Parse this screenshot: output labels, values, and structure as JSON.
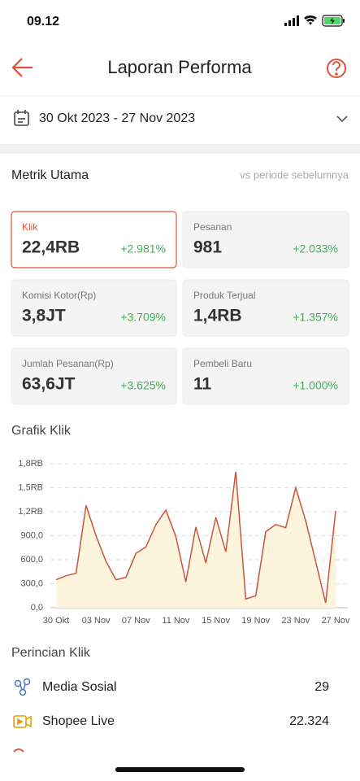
{
  "status_bar": {
    "time": "09.12"
  },
  "header": {
    "title": "Laporan Performa"
  },
  "date_range": "30 Okt 2023 - 27 Nov 2023",
  "section": {
    "title": "Metrik Utama",
    "comparison": "vs periode sebelumnya"
  },
  "metrics": [
    {
      "label": "Klik",
      "value": "22,4RB",
      "change": "+2.981%"
    },
    {
      "label": "Pesanan",
      "value": "981",
      "change": "+2.033%"
    },
    {
      "label": "Komisi Kotor(Rp)",
      "value": "3,8JT",
      "change": "+3.709%"
    },
    {
      "label": "Produk Terjual",
      "value": "1,4RB",
      "change": "+1.357%"
    },
    {
      "label": "Jumlah Pesanan(Rp)",
      "value": "63,6JT",
      "change": "+3.625%"
    },
    {
      "label": "Pembeli Baru",
      "value": "11",
      "change": "+1.000%"
    }
  ],
  "chart_data": {
    "type": "line",
    "title": "Grafik Klik",
    "categories": [
      "30 Okt",
      null,
      null,
      null,
      "03 Nov",
      null,
      null,
      null,
      "07 Nov",
      null,
      null,
      null,
      "11 Nov",
      null,
      null,
      null,
      "15 Nov",
      null,
      null,
      null,
      "19 Nov",
      null,
      null,
      null,
      "23 Nov",
      null,
      null,
      null,
      "27 Nov"
    ],
    "values": [
      350,
      400,
      430,
      1280,
      900,
      580,
      350,
      380,
      680,
      760,
      1040,
      1220,
      890,
      320,
      1010,
      560,
      1130,
      700,
      1700,
      110,
      150,
      950,
      1040,
      1000,
      1500,
      1090,
      580,
      60,
      1210
    ],
    "color": "#c8553d",
    "area_color": "#fdf4de",
    "ylim": [
      0,
      1800
    ],
    "yticks": [
      {
        "value": 0,
        "label": "0,0"
      },
      {
        "value": 300,
        "label": "300,0"
      },
      {
        "value": 600,
        "label": "600,0"
      },
      {
        "value": 900,
        "label": "900,0"
      },
      {
        "value": 1200,
        "label": "1,2RB"
      },
      {
        "value": 1500,
        "label": "1,5RB"
      },
      {
        "value": 1800,
        "label": "1,8RB"
      }
    ],
    "grid": true
  },
  "breakdown": {
    "title": "Perincian Klik",
    "items": [
      {
        "label": "Media Sosial",
        "value": "29"
      },
      {
        "label": "Shopee Live",
        "value": "22.324"
      }
    ]
  }
}
